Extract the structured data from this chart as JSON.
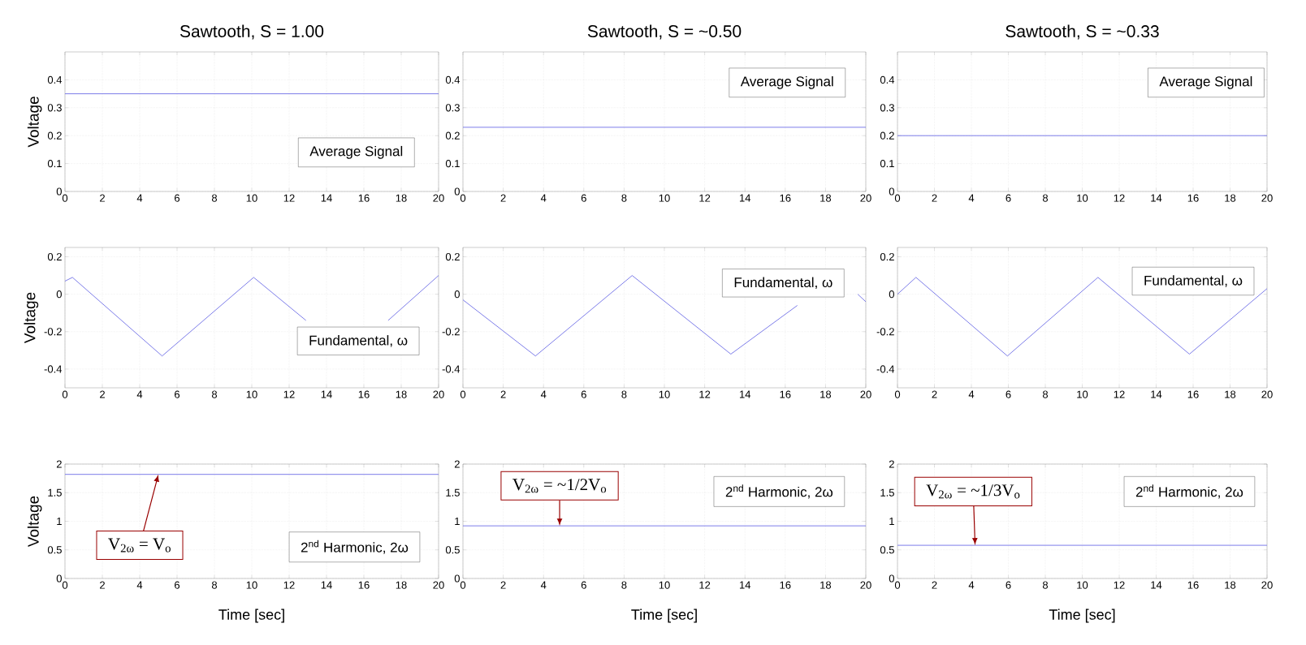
{
  "chart_data": [
    {
      "type": "line",
      "title": "Sawtooth, S = 1.00",
      "ylabel": "Voltage",
      "x": [
        0,
        20
      ],
      "values": [
        0.35,
        0.35
      ],
      "color": "#6e6ee6",
      "xlim": [
        0,
        20
      ],
      "ylim": [
        0,
        0.5
      ],
      "xticks": [
        0,
        2,
        4,
        6,
        8,
        10,
        12,
        14,
        16,
        18,
        20
      ],
      "yticks": [
        0,
        0.1,
        0.2,
        0.3,
        0.4
      ],
      "grid": true,
      "annotations": [
        "Average Signal"
      ]
    },
    {
      "type": "line",
      "title": "Sawtooth, S = ~0.50",
      "x": [
        0,
        20
      ],
      "values": [
        0.23,
        0.23
      ],
      "color": "#6e6ee6",
      "xlim": [
        0,
        20
      ],
      "ylim": [
        0,
        0.5
      ],
      "xticks": [
        0,
        2,
        4,
        6,
        8,
        10,
        12,
        14,
        16,
        18,
        20
      ],
      "yticks": [
        0,
        0.1,
        0.2,
        0.3,
        0.4
      ],
      "grid": true,
      "annotations": [
        "Average Signal"
      ]
    },
    {
      "type": "line",
      "title": "Sawtooth, S = ~0.33",
      "x": [
        0,
        20
      ],
      "values": [
        0.2,
        0.2
      ],
      "color": "#6e6ee6",
      "xlim": [
        0,
        20
      ],
      "ylim": [
        0,
        0.5
      ],
      "xticks": [
        0,
        2,
        4,
        6,
        8,
        10,
        12,
        14,
        16,
        18,
        20
      ],
      "yticks": [
        0,
        0.1,
        0.2,
        0.3,
        0.4
      ],
      "grid": true,
      "annotations": [
        "Average Signal"
      ]
    },
    {
      "type": "line",
      "ylabel": "Voltage",
      "x": [
        0,
        0.4,
        5.2,
        10.1,
        12.9,
        15.1,
        17.3,
        20
      ],
      "values": [
        0.07,
        0.09,
        -0.33,
        0.09,
        -0.14,
        null,
        -0.14,
        0.1
      ],
      "color": "#6e6ee6",
      "xlim": [
        0,
        20
      ],
      "ylim": [
        -0.5,
        0.25
      ],
      "xticks": [
        0,
        2,
        4,
        6,
        8,
        10,
        12,
        14,
        16,
        18,
        20
      ],
      "yticks": [
        -0.4,
        -0.2,
        0,
        0.2
      ],
      "grid": true,
      "annotations": [
        "Fundamental, ω"
      ]
    },
    {
      "type": "line",
      "x": [
        0,
        3.6,
        8.4,
        13.3,
        16.6,
        18.2,
        19.6,
        20
      ],
      "values": [
        -0.03,
        -0.33,
        0.1,
        -0.32,
        -0.06,
        null,
        0.0,
        -0.04
      ],
      "color": "#6e6ee6",
      "xlim": [
        0,
        20
      ],
      "ylim": [
        -0.5,
        0.25
      ],
      "xticks": [
        0,
        2,
        4,
        6,
        8,
        10,
        12,
        14,
        16,
        18,
        20
      ],
      "yticks": [
        -0.4,
        -0.2,
        0,
        0.2
      ],
      "grid": true,
      "annotations": [
        "Fundamental, ω"
      ]
    },
    {
      "type": "line",
      "x": [
        0,
        1,
        5.95,
        10.85,
        15.8,
        20
      ],
      "values": [
        0,
        0.09,
        -0.33,
        0.09,
        -0.32,
        0.03
      ],
      "color": "#6e6ee6",
      "xlim": [
        0,
        20
      ],
      "ylim": [
        -0.5,
        0.25
      ],
      "xticks": [
        0,
        2,
        4,
        6,
        8,
        10,
        12,
        14,
        16,
        18,
        20
      ],
      "yticks": [
        -0.4,
        -0.2,
        0,
        0.2
      ],
      "grid": true,
      "annotations": [
        "Fundamental, ω"
      ]
    },
    {
      "type": "line",
      "ylabel": "Voltage",
      "xlabel": "Time [sec]",
      "x": [
        0,
        20
      ],
      "values": [
        1.82,
        1.82
      ],
      "color": "#6e6ee6",
      "xlim": [
        0,
        20
      ],
      "ylim": [
        0,
        2
      ],
      "xticks": [
        0,
        2,
        4,
        6,
        8,
        10,
        12,
        14,
        16,
        18,
        20
      ],
      "yticks": [
        0,
        0.5,
        1,
        1.5,
        2
      ],
      "grid": true,
      "annotations": [
        "2$^{nd}$ Harmonic, 2ω",
        {
          "text": "V$_{2ω}$ = V$_{o}$",
          "x": 5,
          "y": 1.82
        }
      ]
    },
    {
      "type": "line",
      "xlabel": "Time [sec]",
      "x": [
        0,
        20
      ],
      "values": [
        0.92,
        0.92
      ],
      "color": "#6e6ee6",
      "xlim": [
        0,
        20
      ],
      "ylim": [
        0,
        2
      ],
      "xticks": [
        0,
        2,
        4,
        6,
        8,
        10,
        12,
        14,
        16,
        18,
        20
      ],
      "yticks": [
        0,
        0.5,
        1,
        1.5,
        2
      ],
      "grid": true,
      "annotations": [
        "2$^{nd}$ Harmonic, 2ω",
        {
          "text": "V$_{2ω}$ = ~1/2V$_{o}$",
          "x": 4.8,
          "y": 0.92
        }
      ]
    },
    {
      "type": "line",
      "xlabel": "Time [sec]",
      "x": [
        0,
        20
      ],
      "values": [
        0.58,
        0.58
      ],
      "color": "#6e6ee6",
      "xlim": [
        0,
        20
      ],
      "ylim": [
        0,
        2
      ],
      "xticks": [
        0,
        2,
        4,
        6,
        8,
        10,
        12,
        14,
        16,
        18,
        20
      ],
      "yticks": [
        0,
        0.5,
        1,
        1.5,
        2
      ],
      "grid": true,
      "annotations": [
        "2$^{nd}$ Harmonic, 2ω",
        {
          "text": "V$_{2ω}$ = ~1/3V$_{o}$",
          "x": 4.2,
          "y": 0.58
        }
      ]
    }
  ]
}
